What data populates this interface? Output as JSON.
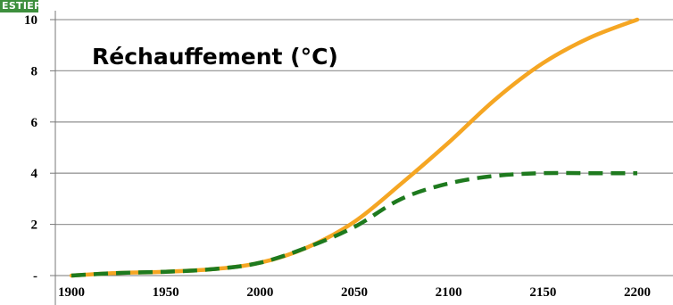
{
  "badge": {
    "text": "ESTIERS"
  },
  "chart_data": {
    "type": "line",
    "title": "Réchauffement (°C)",
    "xlabel": "",
    "ylabel": "",
    "x": [
      1900,
      1925,
      1950,
      1975,
      2000,
      2025,
      2050,
      2075,
      2100,
      2125,
      2150,
      2175,
      2200
    ],
    "xlim": [
      1900,
      2200
    ],
    "ylim": [
      0,
      10
    ],
    "x_ticks": [
      "1900",
      "1950",
      "2000",
      "2050",
      "2100",
      "2150",
      "2200"
    ],
    "y_ticks": [
      "-",
      "2",
      "4",
      "6",
      "8",
      "10"
    ],
    "grid": true,
    "legend": "none",
    "series": [
      {
        "color": "#f5a623",
        "style": "solid",
        "values": [
          0.0,
          0.1,
          0.15,
          0.25,
          0.5,
          1.1,
          2.1,
          3.6,
          5.2,
          6.9,
          8.3,
          9.3,
          10.0
        ]
      },
      {
        "color": "#1e7a1e",
        "style": "dashed",
        "values": [
          0.0,
          0.1,
          0.15,
          0.25,
          0.5,
          1.1,
          1.9,
          3.0,
          3.6,
          3.9,
          4.0,
          4.0,
          4.0
        ]
      }
    ]
  }
}
